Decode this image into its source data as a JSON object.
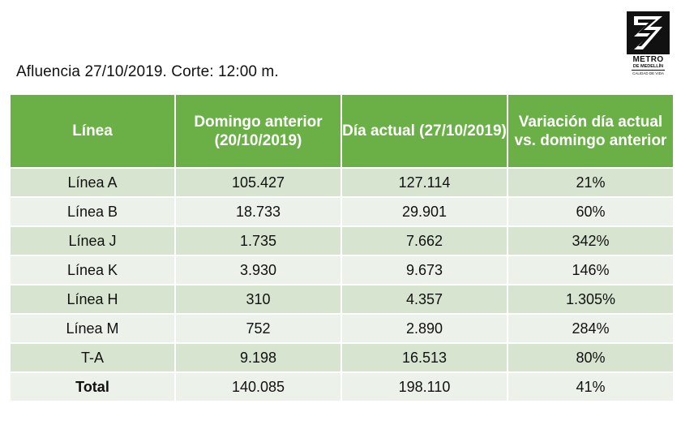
{
  "caption": "Afluencia 27/10/2019. Corte: 12:00 m.",
  "logo": {
    "name": "METRO",
    "city": "DE MEDELLÍN",
    "tagline": "CALIDAD DE VIDA"
  },
  "colors": {
    "header_green": "#6ab047",
    "row_dark": "#d7e5d0",
    "row_light": "#ecf2e9"
  },
  "table": {
    "headers": {
      "linea": "Línea",
      "domingo_anterior": "Domingo anterior (20/10/2019)",
      "dia_actual": "Día actual (27/10/2019)",
      "variacion": "Variación día actual vs. domingo anterior"
    },
    "rows": [
      {
        "linea": "Línea A",
        "domingo_anterior": "105.427",
        "dia_actual": "127.114",
        "variacion": "21%"
      },
      {
        "linea": "Línea B",
        "domingo_anterior": "18.733",
        "dia_actual": "29.901",
        "variacion": "60%"
      },
      {
        "linea": "Línea J",
        "domingo_anterior": "1.735",
        "dia_actual": "7.662",
        "variacion": "342%"
      },
      {
        "linea": "Línea K",
        "domingo_anterior": "3.930",
        "dia_actual": "9.673",
        "variacion": "146%"
      },
      {
        "linea": "Línea H",
        "domingo_anterior": "310",
        "dia_actual": "4.357",
        "variacion": "1.305%"
      },
      {
        "linea": "Línea M",
        "domingo_anterior": "752",
        "dia_actual": "2.890",
        "variacion": "284%"
      },
      {
        "linea": "T-A",
        "domingo_anterior": "9.198",
        "dia_actual": "16.513",
        "variacion": "80%"
      },
      {
        "linea": "Total",
        "domingo_anterior": "140.085",
        "dia_actual": "198.110",
        "variacion": "41%"
      }
    ]
  }
}
